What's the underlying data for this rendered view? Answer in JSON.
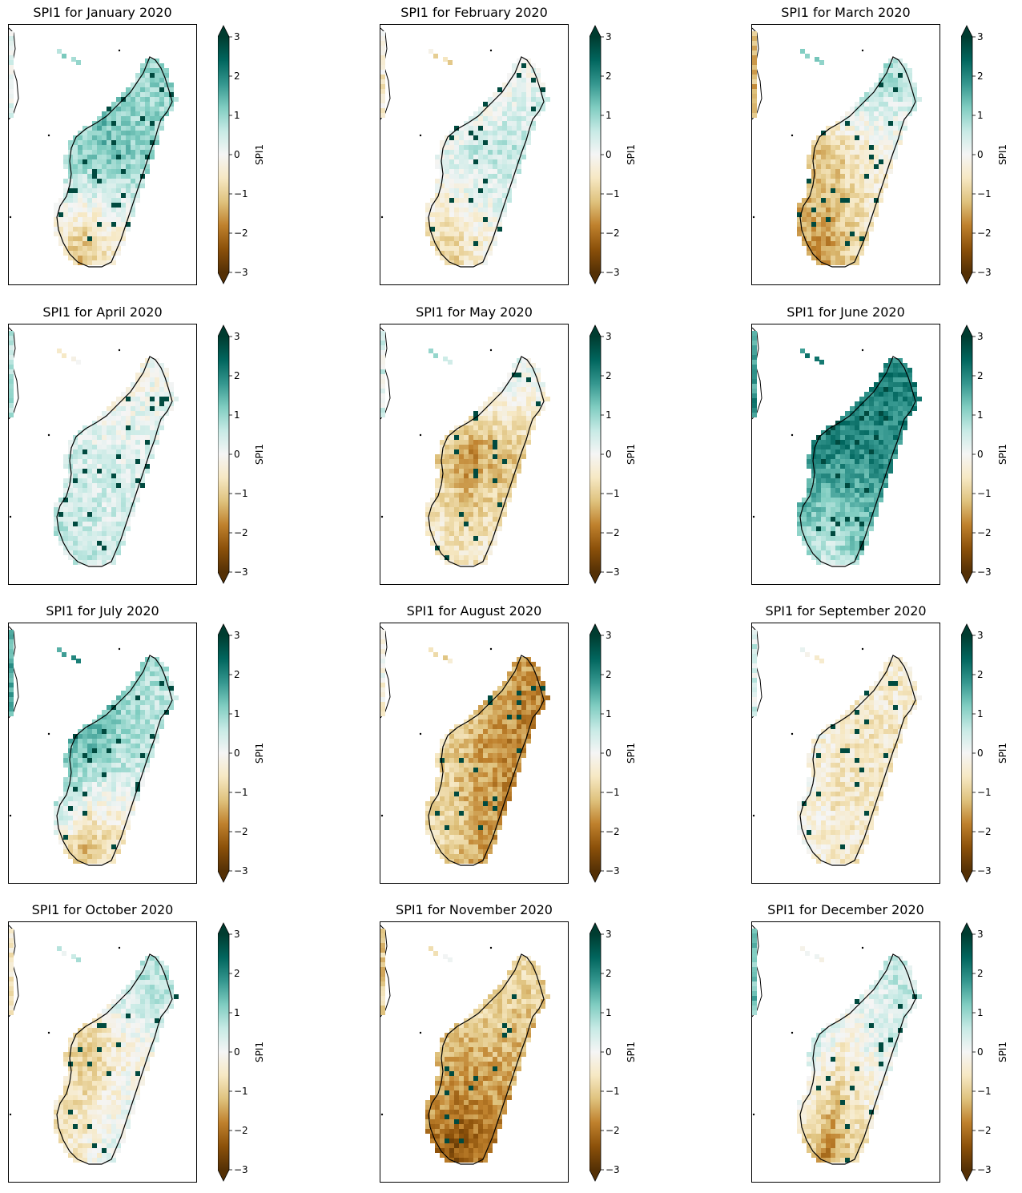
{
  "colors": {
    "colormap": [
      "#543005",
      "#8c510a",
      "#bf812d",
      "#dfc27d",
      "#f6e8c3",
      "#f5f5f5",
      "#c7eae5",
      "#80cdc1",
      "#35978f",
      "#01665e",
      "#003c30"
    ],
    "coastline": "#000000"
  },
  "colorbar": {
    "label": "SPI1",
    "ticks": [
      "−3",
      "−2",
      "−1",
      "0",
      "1",
      "2",
      "3"
    ],
    "range": [
      -3,
      3
    ]
  },
  "panels": [
    {
      "title": "SPI1 for January 2020",
      "regions": {
        "north": 1.2,
        "central": 1.4,
        "south": -1.2,
        "west": 0.3,
        "east": 0.8
      }
    },
    {
      "title": "SPI1 for February 2020",
      "regions": {
        "north": -0.6,
        "central": 0.6,
        "south": -0.9,
        "west": -0.4,
        "east": 0.7
      }
    },
    {
      "title": "SPI1 for March 2020",
      "regions": {
        "north": 1.3,
        "central": -0.9,
        "south": -1.6,
        "west": -1.3,
        "east": 0.4
      }
    },
    {
      "title": "SPI1 for April 2020",
      "regions": {
        "north": -0.4,
        "central": 0.3,
        "south": 0.6,
        "west": 0.7,
        "east": 0.3
      }
    },
    {
      "title": "SPI1 for May 2020",
      "regions": {
        "north": 0.8,
        "central": -1.8,
        "south": -0.6,
        "west": 0.3,
        "east": -0.4
      }
    },
    {
      "title": "SPI1 for June 2020",
      "regions": {
        "north": 2.2,
        "central": 2.0,
        "south": 0.5,
        "west": 1.8,
        "east": 2.0
      }
    },
    {
      "title": "SPI1 for July 2020",
      "regions": {
        "north": 1.6,
        "central": 1.2,
        "south": -1.2,
        "west": 1.6,
        "east": 0.2
      }
    },
    {
      "title": "SPI1 for August 2020",
      "regions": {
        "north": -0.8,
        "central": -1.3,
        "south": -1.0,
        "west": -0.2,
        "east": -2.2
      }
    },
    {
      "title": "SPI1 for September 2020",
      "regions": {
        "north": -0.3,
        "central": -0.6,
        "south": -0.4,
        "west": 0.4,
        "east": -0.5
      }
    },
    {
      "title": "SPI1 for October 2020",
      "regions": {
        "north": 0.6,
        "central": -1.0,
        "south": -0.4,
        "west": -0.6,
        "east": 0.9
      }
    },
    {
      "title": "SPI1 for November 2020",
      "regions": {
        "north": -0.3,
        "central": -1.3,
        "south": -2.4,
        "west": -1.0,
        "east": -1.2
      }
    },
    {
      "title": "SPI1 for December 2020",
      "regions": {
        "north": 0.2,
        "central": -0.4,
        "south": -1.8,
        "west": 1.3,
        "east": 0.8
      }
    }
  ]
}
